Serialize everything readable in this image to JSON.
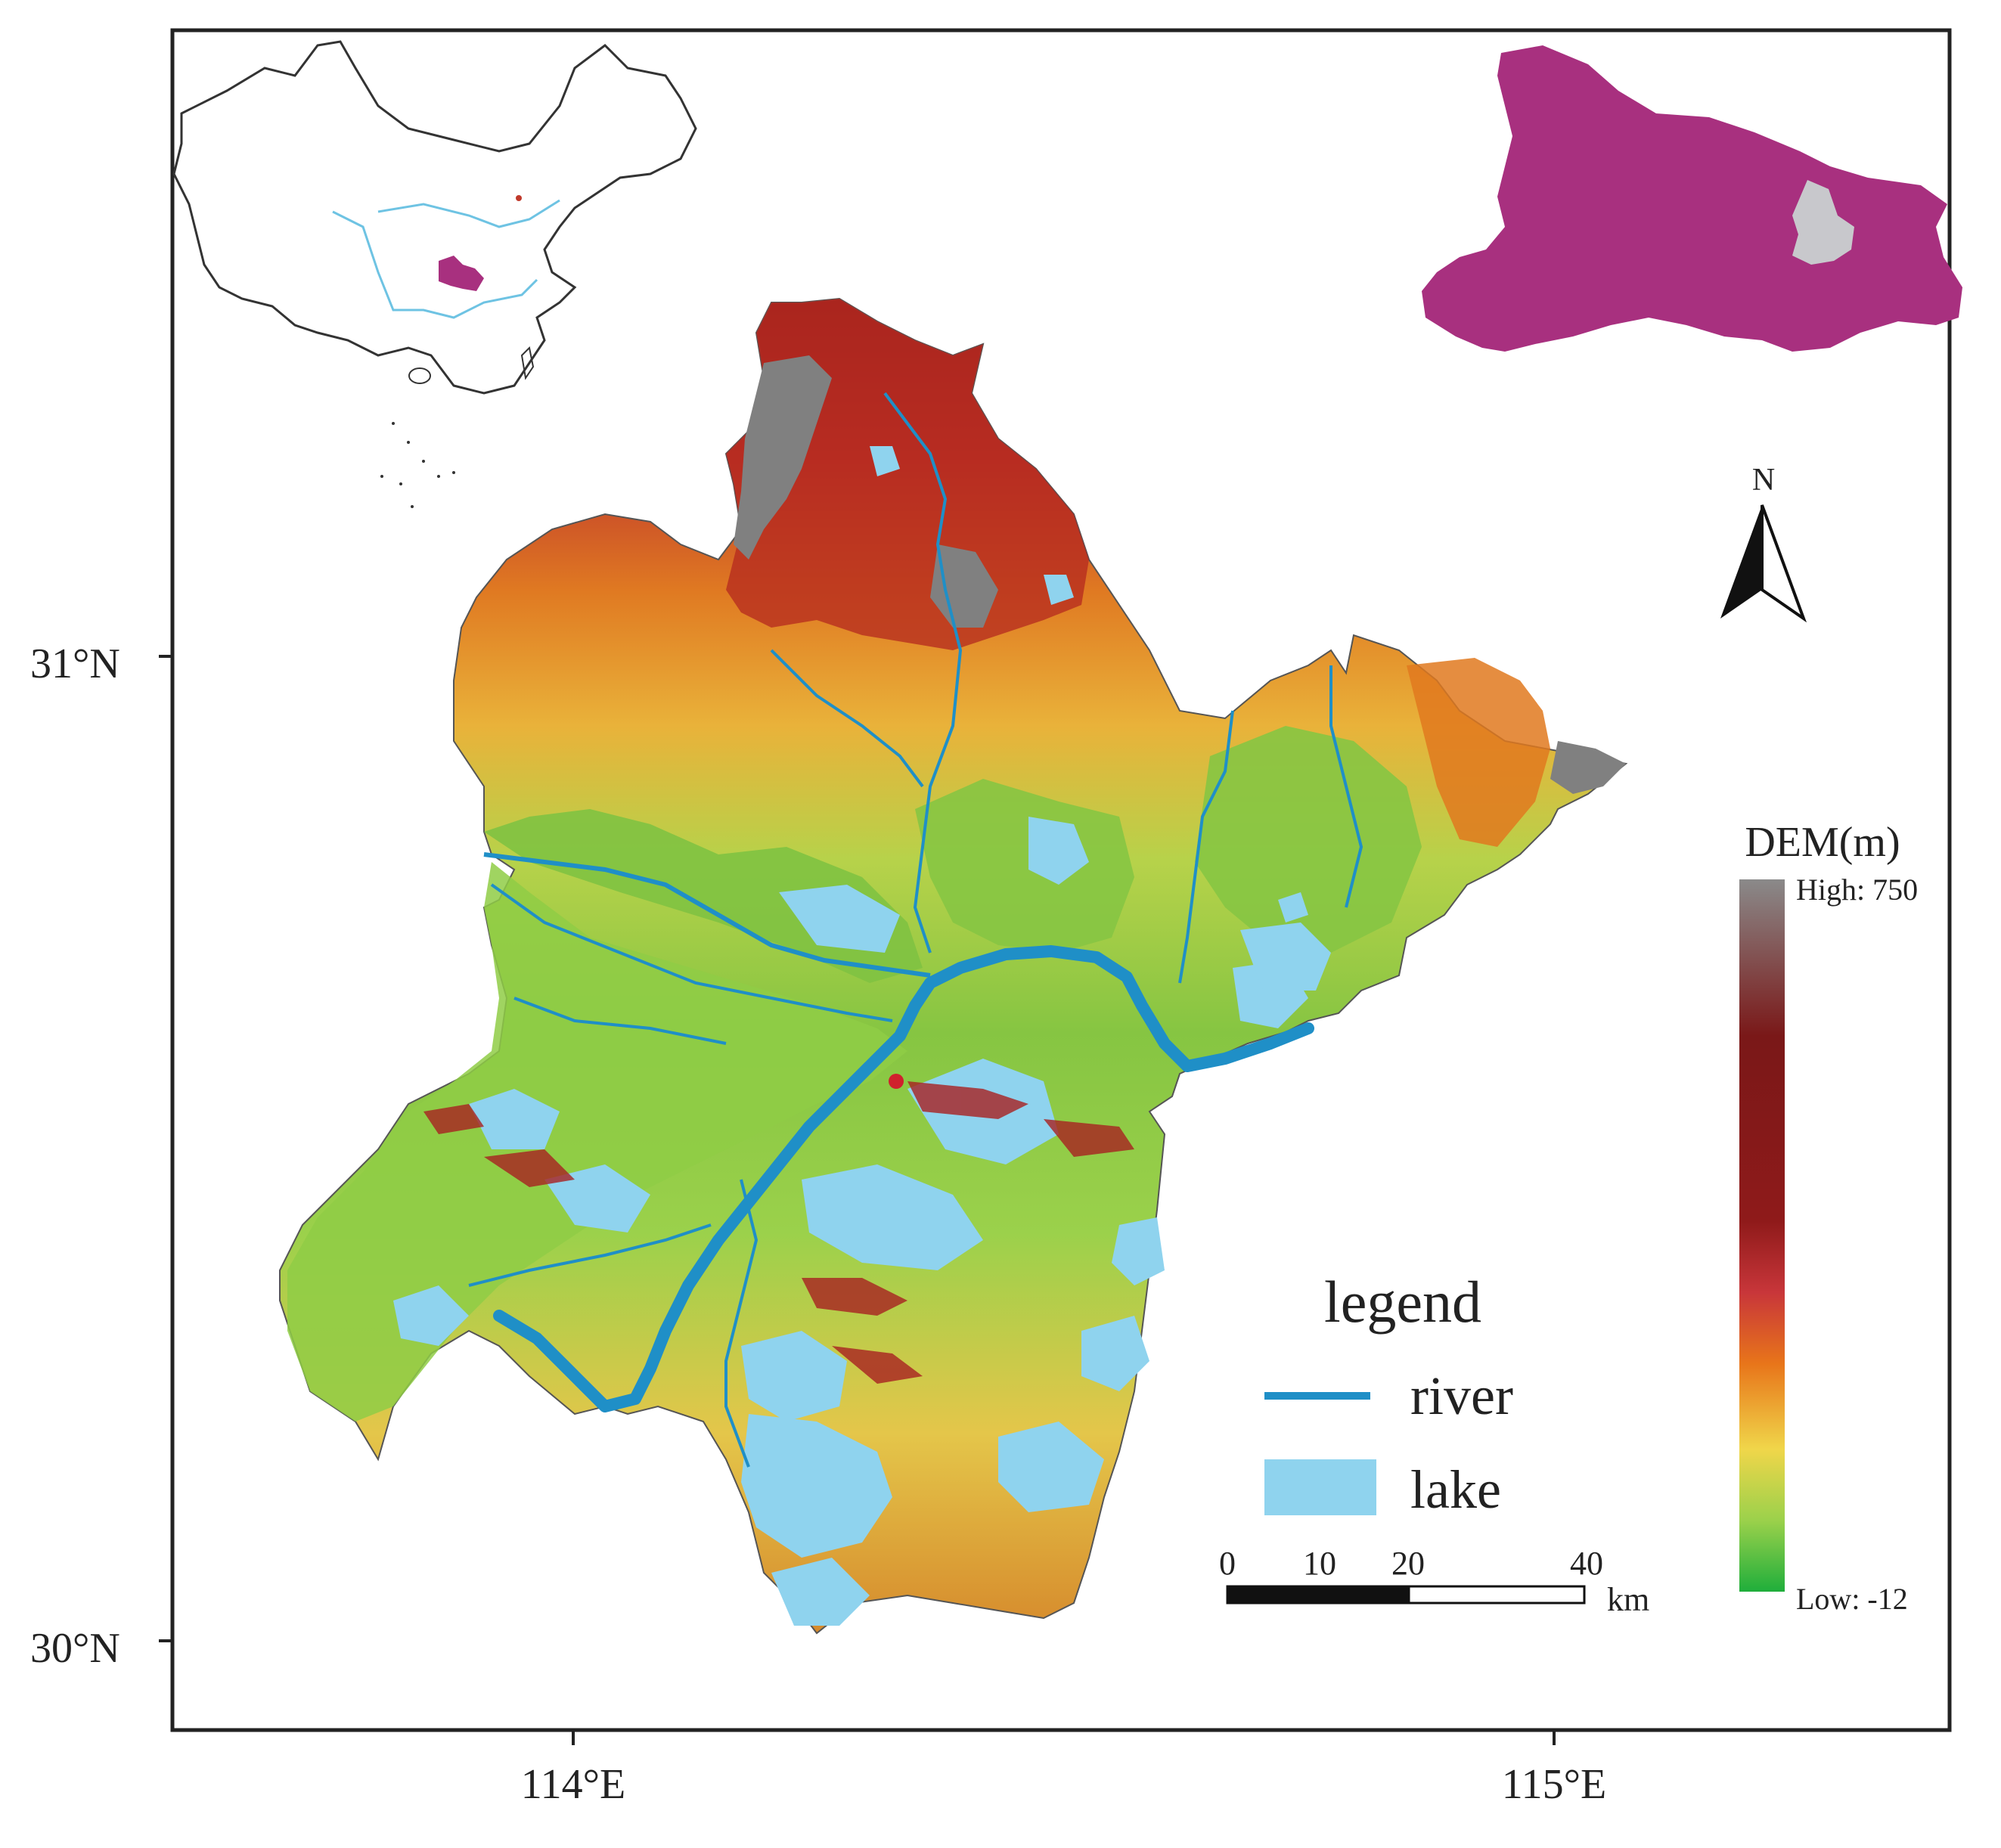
{
  "map": {
    "latitude_labels": [
      "31°N",
      "30°N"
    ],
    "longitude_labels": [
      "114°E",
      "115°E"
    ],
    "north_arrow_label": "N",
    "legend": {
      "title": "legend",
      "items": [
        {
          "label": "river",
          "symbol": "line",
          "color": "#1f8fc7"
        },
        {
          "label": "lake",
          "symbol": "fill",
          "color": "#8fd3ee"
        }
      ]
    },
    "scale_bar": {
      "ticks": [
        "0",
        "10",
        "20",
        "40"
      ],
      "unit": "km"
    },
    "dem_legend": {
      "title": "DEM(m)",
      "high_label": "High: 750",
      "low_label": "Low: -12",
      "colors": [
        "#8a8a8a",
        "#8b1a1a",
        "#c0392b",
        "#e8751a",
        "#f0d64a",
        "#9bd14b",
        "#1fae3b"
      ]
    },
    "colors": {
      "province_fill": "#a8307f",
      "study_area_highlight": "#c8c8cc",
      "china_outline": "#333333",
      "river": "#1f8fc7",
      "lake": "#8fd3ee",
      "frame": "#222222"
    }
  }
}
